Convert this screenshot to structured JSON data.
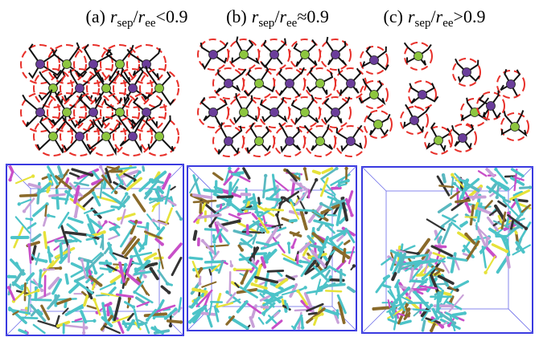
{
  "panels": [
    {
      "label": "(a)",
      "expression": [
        {
          "text": "r",
          "style": "italic"
        },
        {
          "text": "sep",
          "style": "sub"
        },
        {
          "text": "/"
        },
        {
          "text": "r",
          "style": "italic"
        },
        {
          "text": "ee",
          "style": "sub"
        },
        {
          "text": "<0.9"
        }
      ]
    },
    {
      "label": "(b)",
      "expression": [
        {
          "text": "r",
          "style": "italic"
        },
        {
          "text": "sep",
          "style": "sub"
        },
        {
          "text": "/"
        },
        {
          "text": "r",
          "style": "italic"
        },
        {
          "text": "ee",
          "style": "sub"
        },
        {
          "text": "≈0.9"
        }
      ]
    },
    {
      "label": "(c)",
      "expression": [
        {
          "text": "r",
          "style": "italic"
        },
        {
          "text": "sep",
          "style": "sub"
        },
        {
          "text": "/"
        },
        {
          "text": "r",
          "style": "italic"
        },
        {
          "text": "ee",
          "style": "sub"
        },
        {
          "text": ">0.9"
        }
      ]
    }
  ]
}
